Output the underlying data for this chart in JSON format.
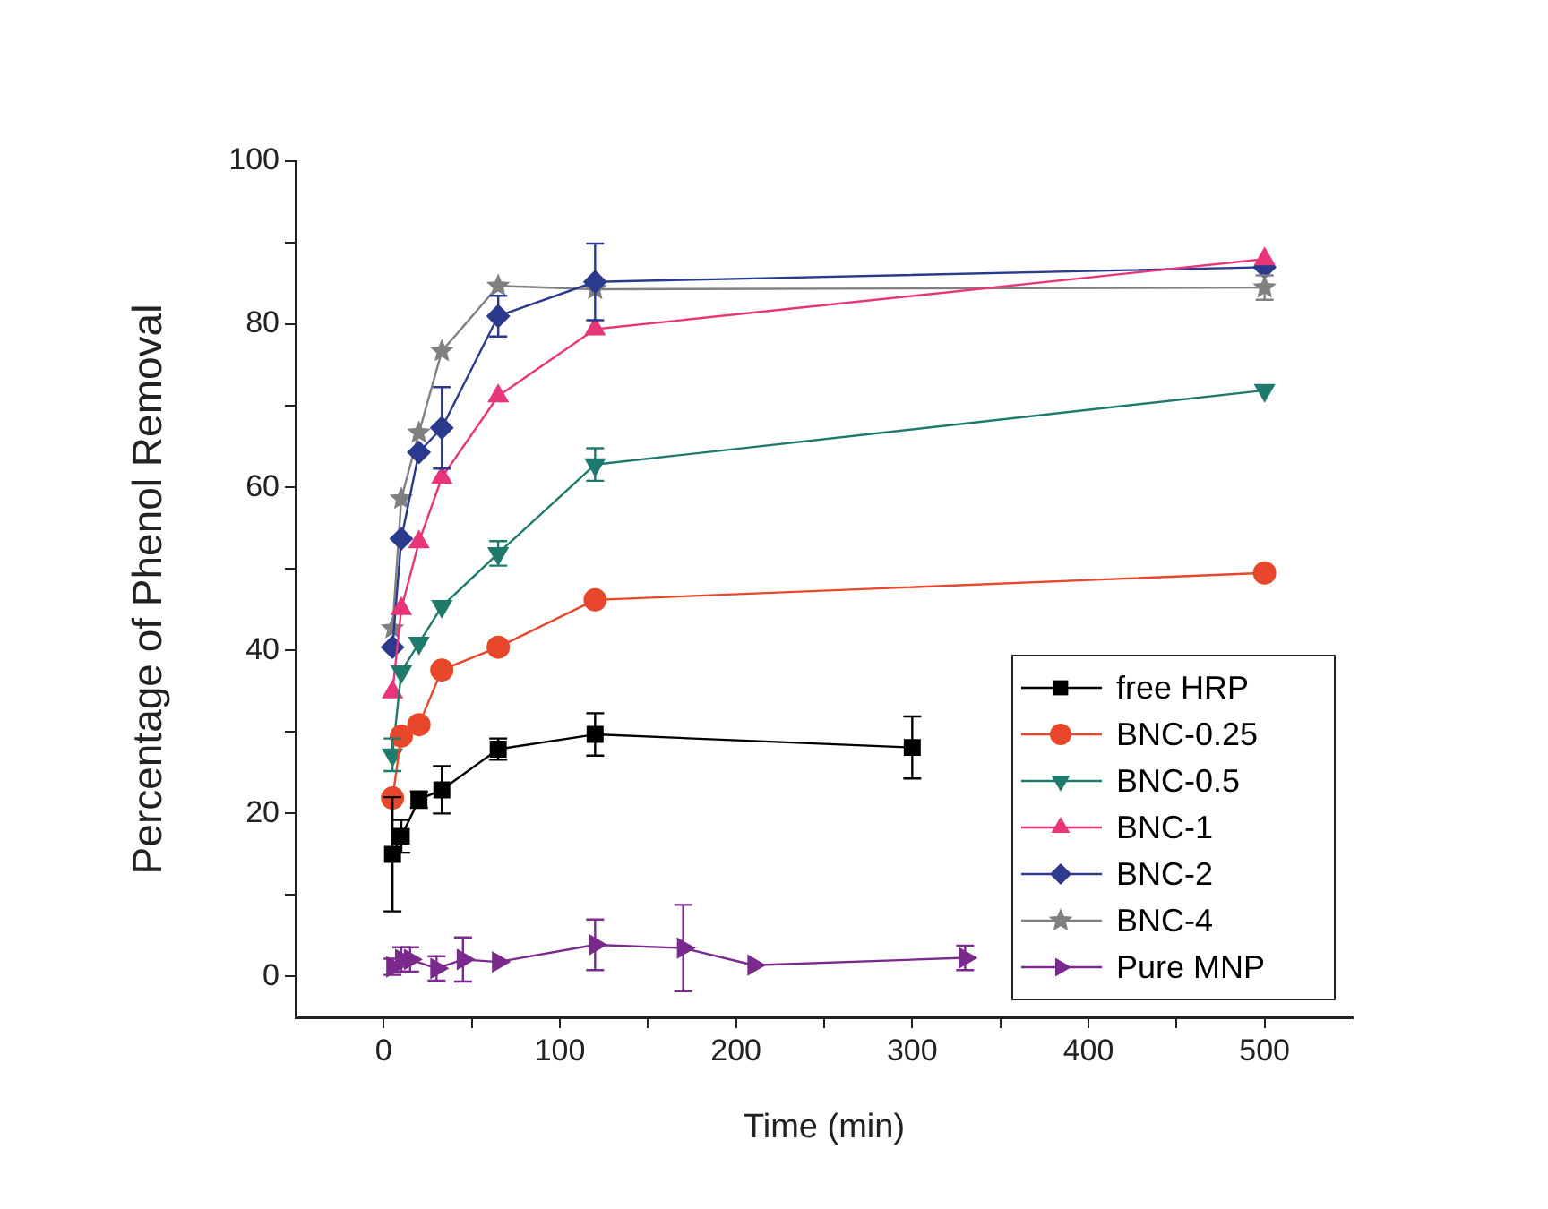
{
  "chart_data": {
    "type": "line",
    "xlabel": "Time (min)",
    "ylabel": "Percentage of Phenol Removal",
    "xlim": [
      -50,
      550
    ],
    "xticks": [
      0,
      {
        "value": 50,
        "label": null
      },
      100,
      {
        "value": 150,
        "label": null
      },
      200,
      {
        "value": 250,
        "label": null
      },
      300,
      {
        "value": 350,
        "label": null
      },
      400,
      {
        "value": 450,
        "label": null
      },
      500
    ],
    "ylim": [
      -5,
      100
    ],
    "yticks": [
      0,
      {
        "value": 10,
        "label": null
      },
      20,
      {
        "value": 30,
        "label": null
      },
      40,
      {
        "value": 50,
        "label": null
      },
      60,
      {
        "value": 70,
        "label": null
      },
      80,
      {
        "value": 90,
        "label": null
      },
      100
    ],
    "grid": false,
    "legend": "bottom right",
    "line_style": "solid",
    "series": [
      {
        "name": "free HRP",
        "color": "#000000",
        "marker": "square",
        "x": [
          5,
          10,
          20,
          33,
          65,
          120,
          300
        ],
        "values": [
          15.0,
          17.2,
          21.7,
          22.9,
          27.9,
          29.7,
          28.1
        ],
        "errors": [
          7,
          2,
          1,
          2.9,
          1.3,
          2.6,
          3.8
        ]
      },
      {
        "name": "BNC-0.25",
        "color": "#e8472b",
        "marker": "circle",
        "x": [
          5,
          10,
          20,
          33,
          65,
          120,
          500
        ],
        "values": [
          21.9,
          29.5,
          30.9,
          37.6,
          40.4,
          46.2,
          49.5
        ],
        "errors": [
          null,
          null,
          null,
          null,
          null,
          null,
          null
        ]
      },
      {
        "name": "BNC-0.5",
        "color": "#1f7a6e",
        "marker": "triangle-down",
        "x": [
          5,
          10,
          20,
          33,
          65,
          120,
          500
        ],
        "values": [
          27.2,
          37.4,
          40.9,
          45.4,
          51.9,
          62.8,
          71.9
        ],
        "errors": [
          2,
          null,
          null,
          null,
          1.5,
          2,
          null
        ]
      },
      {
        "name": "BNC-1",
        "color": "#e8357a",
        "marker": "triangle",
        "x": [
          5,
          10,
          20,
          33,
          65,
          120,
          500
        ],
        "values": [
          34.9,
          45.1,
          53.3,
          61.2,
          71.2,
          79.4,
          88.0
        ],
        "errors": [
          null,
          null,
          null,
          null,
          null,
          null,
          null
        ]
      },
      {
        "name": "BNC-2",
        "color": "#2b3a8c",
        "marker": "diamond",
        "x": [
          5,
          10,
          20,
          33,
          65,
          120,
          500
        ],
        "values": [
          40.4,
          53.7,
          64.3,
          67.3,
          81.0,
          85.2,
          87.0
        ],
        "errors": [
          null,
          null,
          null,
          5,
          2.5,
          4.7,
          null
        ]
      },
      {
        "name": "BNC-4",
        "color": "#808080",
        "marker": "star",
        "x": [
          5,
          10,
          20,
          33,
          65,
          120,
          500
        ],
        "values": [
          42.7,
          58.6,
          66.7,
          76.7,
          84.7,
          84.3,
          84.5
        ],
        "errors": [
          null,
          null,
          null,
          null,
          null,
          null,
          1.5
        ]
      },
      {
        "name": "Pure MNP",
        "color": "#7a2a8c",
        "marker": "triangle-right",
        "x": [
          5,
          10,
          15,
          30,
          45,
          65,
          120,
          170,
          210,
          330
        ],
        "values": [
          1.2,
          2.1,
          2.1,
          1.0,
          2.1,
          1.8,
          3.9,
          3.5,
          1.4,
          2.3
        ],
        "errors": [
          1,
          1.5,
          1.5,
          1.5,
          2.7,
          null,
          3.1,
          5.3,
          null,
          1.5
        ]
      }
    ]
  }
}
